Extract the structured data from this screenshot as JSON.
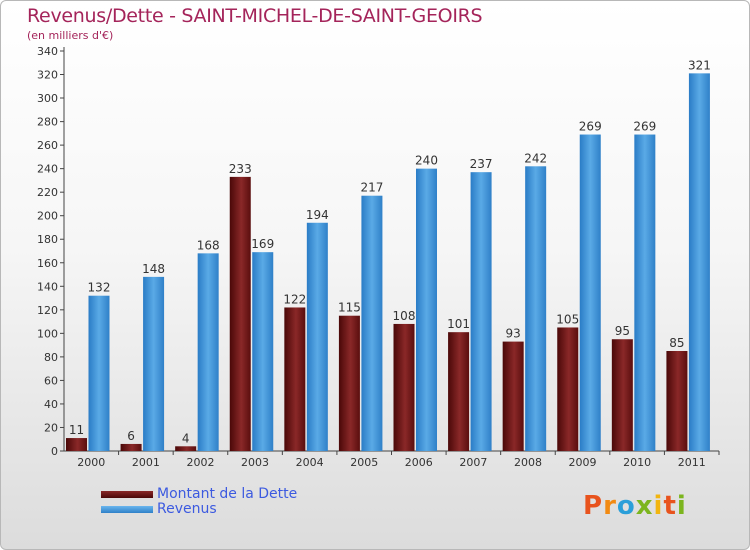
{
  "title": "Revenus/Dette - SAINT-MICHEL-DE-SAINT-GEOIRS",
  "unit": "(en milliers d'€)",
  "brand": {
    "letters": [
      "P",
      "r",
      "o",
      "x",
      "i",
      "t",
      "i"
    ],
    "colors": [
      "#e8531d",
      "#f28a12",
      "#2b9fd9",
      "#7cb51e",
      "#f2b50f",
      "#e8531d",
      "#7cb51e"
    ]
  },
  "colors": {
    "dette": "#7a1a1a",
    "revenus": "#4da0e0",
    "title": "#a4245a",
    "legend_text": "#3c5ae0"
  },
  "chart_data": {
    "type": "bar",
    "title": "Revenus/Dette - SAINT-MICHEL-DE-SAINT-GEOIRS",
    "subtitle": "(en milliers d'€)",
    "categories": [
      "2000",
      "2001",
      "2002",
      "2003",
      "2004",
      "2005",
      "2006",
      "2007",
      "2008",
      "2009",
      "2010",
      "2011"
    ],
    "series": [
      {
        "name": "Montant de la Dette",
        "values": [
          11,
          6,
          4,
          233,
          122,
          115,
          108,
          101,
          93,
          105,
          95,
          85
        ]
      },
      {
        "name": "Revenus",
        "values": [
          132,
          148,
          168,
          169,
          194,
          217,
          240,
          237,
          242,
          269,
          269,
          321
        ]
      }
    ],
    "ylim": [
      0,
      340
    ],
    "ytick_step": 20,
    "grid": false,
    "legend": "bottom-left"
  }
}
